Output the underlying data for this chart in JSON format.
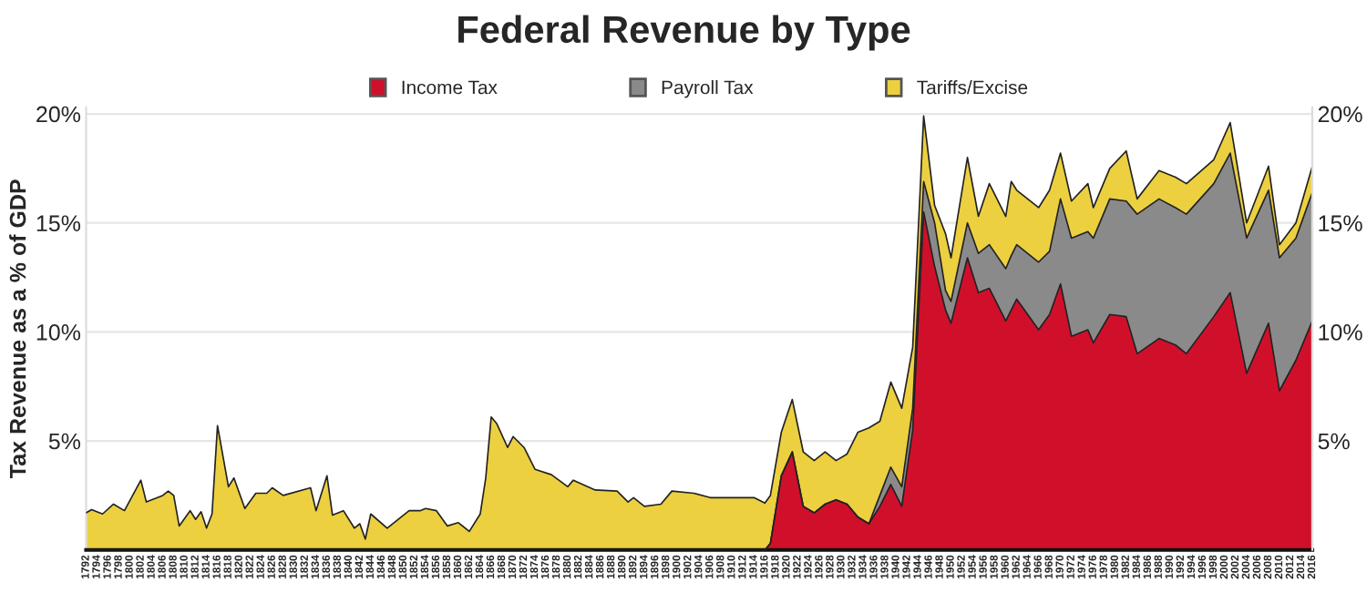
{
  "chart_data": {
    "type": "area",
    "title": "Federal Revenue by Type",
    "ylabel": "Tax Revenue as a % of GDP",
    "stacked": true,
    "x": [
      1792,
      1793,
      1795,
      1797,
      1799,
      1802,
      1803,
      1806,
      1807,
      1808,
      1809,
      1811,
      1812,
      1813,
      1814,
      1815,
      1816,
      1818,
      1819,
      1821,
      1823,
      1825,
      1826,
      1828,
      1833,
      1834,
      1836,
      1837,
      1839,
      1841,
      1842,
      1843,
      1844,
      1847,
      1851,
      1853,
      1854,
      1856,
      1858,
      1860,
      1862,
      1864,
      1865,
      1866,
      1867,
      1869,
      1870,
      1872,
      1874,
      1877,
      1880,
      1881,
      1885,
      1889,
      1891,
      1892,
      1894,
      1897,
      1899,
      1903,
      1906,
      1914,
      1916,
      1917,
      1919,
      1921,
      1923,
      1925,
      1927,
      1929,
      1931,
      1933,
      1935,
      1937,
      1939,
      1941,
      1943,
      1945,
      1947,
      1949,
      1950,
      1953,
      1955,
      1957,
      1960,
      1961,
      1962,
      1966,
      1968,
      1970,
      1972,
      1975,
      1976,
      1979,
      1982,
      1984,
      1988,
      1991,
      1993,
      1998,
      2001,
      2004,
      2008,
      2010,
      2013,
      2016
    ],
    "series": [
      {
        "name": "Income Tax",
        "color": "#d0102a",
        "values": [
          0,
          0,
          0,
          0,
          0,
          0,
          0,
          0,
          0,
          0,
          0,
          0,
          0,
          0,
          0,
          0,
          0,
          0,
          0,
          0,
          0,
          0,
          0,
          0,
          0,
          0,
          0,
          0,
          0,
          0,
          0,
          0,
          0,
          0,
          0,
          0,
          0,
          0,
          0,
          0,
          0,
          0,
          0,
          0,
          0,
          0,
          0,
          0,
          0,
          0,
          0,
          0,
          0,
          0,
          0,
          0,
          0,
          0,
          0,
          0,
          0,
          0,
          0,
          0.3,
          3.4,
          4.5,
          2.0,
          1.7,
          2.1,
          2.3,
          2.1,
          1.5,
          1.2,
          2.0,
          3.0,
          2.0,
          5.5,
          15.5,
          13.0,
          11.0,
          10.4,
          13.4,
          11.8,
          12.0,
          10.5,
          11.0,
          11.5,
          10.1,
          10.8,
          12.2,
          9.8,
          10.1,
          9.5,
          10.8,
          10.7,
          9.0,
          9.7,
          9.4,
          9.0,
          10.7,
          11.8,
          8.1,
          10.4,
          7.3,
          8.7,
          10.5
        ]
      },
      {
        "name": "Payroll Tax",
        "color": "#8a8a8a",
        "values": [
          0,
          0,
          0,
          0,
          0,
          0,
          0,
          0,
          0,
          0,
          0,
          0,
          0,
          0,
          0,
          0,
          0,
          0,
          0,
          0,
          0,
          0,
          0,
          0,
          0,
          0,
          0,
          0,
          0,
          0,
          0,
          0,
          0,
          0,
          0,
          0,
          0,
          0,
          0,
          0,
          0,
          0,
          0,
          0,
          0,
          0,
          0,
          0,
          0,
          0,
          0,
          0,
          0,
          0,
          0,
          0,
          0,
          0,
          0,
          0,
          0,
          0,
          0,
          0,
          0,
          0,
          0,
          0,
          0,
          0,
          0,
          0,
          0,
          0.5,
          0.8,
          0.9,
          1.0,
          1.4,
          2.0,
          0.9,
          1.0,
          1.6,
          1.8,
          2.0,
          2.4,
          2.5,
          2.5,
          3.1,
          2.9,
          3.9,
          4.5,
          4.5,
          4.8,
          5.3,
          5.3,
          6.4,
          6.4,
          6.3,
          6.4,
          6.1,
          6.4,
          6.2,
          6.1,
          6.1,
          5.6,
          5.9
        ]
      },
      {
        "name": "Tariffs/Excise",
        "color": "#ecd040",
        "values": [
          1.7,
          1.85,
          1.65,
          2.1,
          1.8,
          3.2,
          2.2,
          2.5,
          2.7,
          2.5,
          1.1,
          1.8,
          1.4,
          1.75,
          1.0,
          1.65,
          5.7,
          2.9,
          3.3,
          1.9,
          2.6,
          2.6,
          2.85,
          2.5,
          2.85,
          1.8,
          3.4,
          1.6,
          1.8,
          1.0,
          1.2,
          0.5,
          1.65,
          1.0,
          1.8,
          1.8,
          1.9,
          1.8,
          1.1,
          1.25,
          0.85,
          1.65,
          3.3,
          6.1,
          5.8,
          4.7,
          5.2,
          4.7,
          3.7,
          3.45,
          2.9,
          3.2,
          2.75,
          2.7,
          2.2,
          2.4,
          2.0,
          2.1,
          2.7,
          2.6,
          2.4,
          2.4,
          2.15,
          2.2,
          2.0,
          2.4,
          2.5,
          2.4,
          2.4,
          1.8,
          2.3,
          3.9,
          4.4,
          3.4,
          3.9,
          3.6,
          2.8,
          3.0,
          0.8,
          2.6,
          2.0,
          3.0,
          1.7,
          2.8,
          2.4,
          3.4,
          2.5,
          2.5,
          2.8,
          2.1,
          1.7,
          2.2,
          1.4,
          1.4,
          2.3,
          0.7,
          1.3,
          1.4,
          1.4,
          1.1,
          1.4,
          0.7,
          1.1,
          0.6,
          0.7,
          1.2
        ]
      }
    ],
    "xlim": [
      1792,
      2016
    ],
    "xticks": [
      1792,
      1794,
      1796,
      1798,
      1800,
      1802,
      1804,
      1806,
      1808,
      1810,
      1812,
      1814,
      1816,
      1818,
      1820,
      1822,
      1824,
      1826,
      1828,
      1830,
      1832,
      1834,
      1836,
      1838,
      1840,
      1842,
      1844,
      1846,
      1848,
      1850,
      1852,
      1854,
      1856,
      1858,
      1860,
      1862,
      1864,
      1866,
      1868,
      1870,
      1872,
      1874,
      1876,
      1878,
      1880,
      1882,
      1884,
      1886,
      1888,
      1890,
      1892,
      1894,
      1896,
      1898,
      1900,
      1902,
      1904,
      1906,
      1908,
      1910,
      1912,
      1914,
      1916,
      1918,
      1920,
      1922,
      1924,
      1926,
      1928,
      1930,
      1932,
      1934,
      1936,
      1938,
      1940,
      1942,
      1944,
      1946,
      1948,
      1950,
      1952,
      1954,
      1956,
      1958,
      1960,
      1962,
      1964,
      1966,
      1968,
      1970,
      1972,
      1974,
      1976,
      1978,
      1980,
      1982,
      1984,
      1986,
      1988,
      1990,
      1992,
      1994,
      1996,
      1998,
      2000,
      2002,
      2004,
      2006,
      2008,
      2010,
      2012,
      2014,
      2016
    ],
    "ylim": [
      0,
      20.3
    ],
    "yticks": [
      {
        "value": 5,
        "label": "5%"
      },
      {
        "value": 10,
        "label": "10%"
      },
      {
        "value": 15,
        "label": "15%"
      },
      {
        "value": 20,
        "label": "20%"
      }
    ],
    "y2lim": [
      0,
      20.3
    ],
    "y2ticks": [
      {
        "value": 5,
        "label": "5%"
      },
      {
        "value": 10,
        "label": "10%"
      },
      {
        "value": 15,
        "label": "15%"
      },
      {
        "value": 20,
        "label": "20%"
      }
    ],
    "grid": "y",
    "legend": "top"
  }
}
